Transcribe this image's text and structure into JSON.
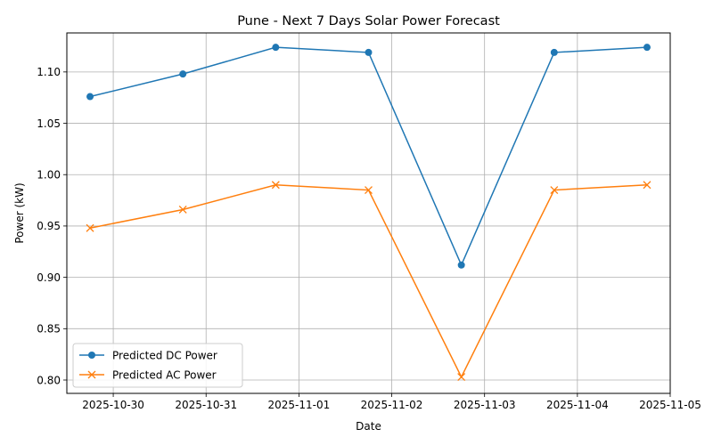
{
  "chart_data": {
    "type": "line",
    "title": "Pune - Next 7 Days Solar Power Forecast",
    "xlabel": "Date",
    "ylabel": "Power (kW)",
    "x": [
      "2025-10-29 18:00",
      "2025-10-30 18:00",
      "2025-10-31 18:00",
      "2025-11-01 18:00",
      "2025-11-02 18:00",
      "2025-11-03 18:00",
      "2025-11-04 18:00"
    ],
    "x_ticks": [
      "2025-10-30",
      "2025-10-31",
      "2025-11-01",
      "2025-11-02",
      "2025-11-03",
      "2025-11-04",
      "2025-11-05"
    ],
    "y_ticks": [
      "0.80",
      "0.85",
      "0.90",
      "0.95",
      "1.00",
      "1.05",
      "1.10"
    ],
    "ylim": [
      0.787,
      1.138
    ],
    "grid": true,
    "legend_position": "lower-left",
    "series": [
      {
        "name": "Predicted DC Power",
        "color": "#1f77b4",
        "marker": "circle",
        "values": [
          1.076,
          1.098,
          1.124,
          1.119,
          0.912,
          1.119,
          1.124
        ]
      },
      {
        "name": "Predicted AC Power",
        "color": "#ff7f0e",
        "marker": "x",
        "values": [
          0.948,
          0.966,
          0.99,
          0.985,
          0.803,
          0.985,
          0.99
        ]
      }
    ]
  }
}
